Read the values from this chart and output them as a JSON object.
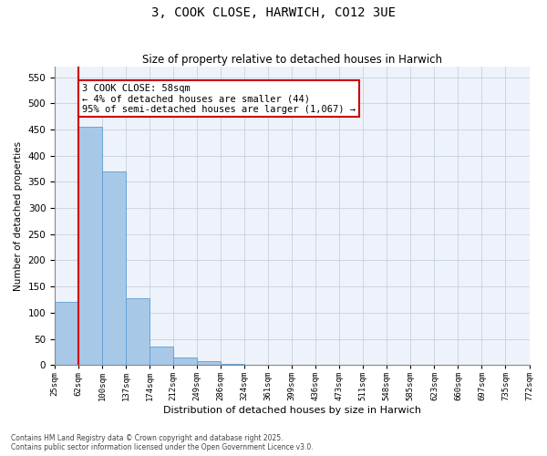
{
  "title": "3, COOK CLOSE, HARWICH, CO12 3UE",
  "subtitle": "Size of property relative to detached houses in Harwich",
  "xlabel": "Distribution of detached houses by size in Harwich",
  "ylabel": "Number of detached properties",
  "bins": [
    "25sqm",
    "62sqm",
    "100sqm",
    "137sqm",
    "174sqm",
    "212sqm",
    "249sqm",
    "286sqm",
    "324sqm",
    "361sqm",
    "399sqm",
    "436sqm",
    "473sqm",
    "511sqm",
    "548sqm",
    "585sqm",
    "623sqm",
    "660sqm",
    "697sqm",
    "735sqm",
    "772sqm"
  ],
  "bar_values": [
    120,
    455,
    370,
    128,
    35,
    14,
    8,
    3,
    1,
    1,
    0,
    0,
    0,
    0,
    0,
    0,
    0,
    0,
    0,
    0
  ],
  "bar_color": "#a8c8e8",
  "bar_edge_color": "#5a9fd4",
  "property_line_x": 1.0,
  "annotation_text": "3 COOK CLOSE: 58sqm\n← 4% of detached houses are smaller (44)\n95% of semi-detached houses are larger (1,067) →",
  "annotation_box_color": "#cc0000",
  "property_line_color": "#cc0000",
  "ylim": [
    0,
    570
  ],
  "yticks": [
    0,
    50,
    100,
    150,
    200,
    250,
    300,
    350,
    400,
    450,
    500,
    550
  ],
  "footer_line1": "Contains HM Land Registry data © Crown copyright and database right 2025.",
  "footer_line2": "Contains public sector information licensed under the Open Government Licence v3.0.",
  "bg_color": "#eef2fa",
  "grid_color": "#c8d0e0"
}
